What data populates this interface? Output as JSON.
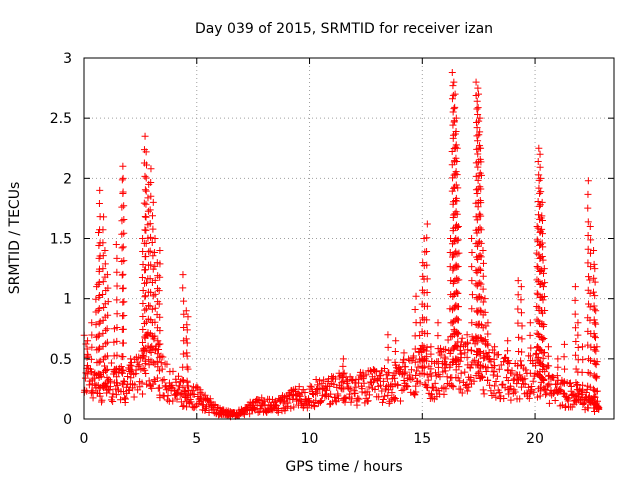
{
  "chart_data": {
    "type": "scatter",
    "title": "Day 039 of 2015, SRMTID for receiver izan",
    "xlabel": "GPS time / hours",
    "ylabel": "SRMTID / TECUs",
    "xlim": [
      0,
      23.5
    ],
    "ylim": [
      0,
      3
    ],
    "xticks": [
      {
        "value": 0,
        "label": "0"
      },
      {
        "value": 5,
        "label": "5"
      },
      {
        "value": 10,
        "label": "10"
      },
      {
        "value": 15,
        "label": "15"
      },
      {
        "value": 20,
        "label": "20"
      }
    ],
    "yticks": [
      {
        "value": 0,
        "label": "0"
      },
      {
        "value": 0.5,
        "label": "0.5"
      },
      {
        "value": 1,
        "label": "1"
      },
      {
        "value": 1.5,
        "label": "1.5"
      },
      {
        "value": 2,
        "label": "2"
      },
      {
        "value": 2.5,
        "label": "2.5"
      },
      {
        "value": 3,
        "label": "3"
      }
    ],
    "grid": "dotted",
    "marker": "plus",
    "series": [
      {
        "name": "SRMTID",
        "color": "#ff0000",
        "baseline": [
          [
            0.0,
            0.45
          ],
          [
            0.3,
            0.3
          ],
          [
            0.6,
            0.25
          ],
          [
            1.0,
            0.3
          ],
          [
            1.5,
            0.3
          ],
          [
            2.0,
            0.28
          ],
          [
            2.5,
            0.38
          ],
          [
            2.8,
            0.5
          ],
          [
            3.2,
            0.45
          ],
          [
            3.6,
            0.32
          ],
          [
            4.0,
            0.25
          ],
          [
            4.5,
            0.2
          ],
          [
            5.0,
            0.18
          ],
          [
            5.5,
            0.12
          ],
          [
            6.0,
            0.06
          ],
          [
            6.5,
            0.04
          ],
          [
            7.0,
            0.06
          ],
          [
            7.5,
            0.1
          ],
          [
            8.0,
            0.12
          ],
          [
            8.5,
            0.1
          ],
          [
            9.0,
            0.14
          ],
          [
            9.5,
            0.18
          ],
          [
            10.0,
            0.2
          ],
          [
            10.5,
            0.22
          ],
          [
            11.0,
            0.24
          ],
          [
            11.5,
            0.25
          ],
          [
            12.0,
            0.25
          ],
          [
            12.5,
            0.26
          ],
          [
            13.0,
            0.27
          ],
          [
            13.5,
            0.28
          ],
          [
            14.0,
            0.3
          ],
          [
            14.5,
            0.35
          ],
          [
            15.0,
            0.38
          ],
          [
            15.5,
            0.35
          ],
          [
            16.0,
            0.4
          ],
          [
            16.5,
            0.5
          ],
          [
            17.0,
            0.45
          ],
          [
            17.5,
            0.45
          ],
          [
            18.0,
            0.42
          ],
          [
            18.5,
            0.35
          ],
          [
            19.0,
            0.3
          ],
          [
            19.5,
            0.35
          ],
          [
            20.0,
            0.4
          ],
          [
            20.5,
            0.3
          ],
          [
            21.0,
            0.22
          ],
          [
            21.5,
            0.2
          ],
          [
            22.0,
            0.18
          ],
          [
            22.5,
            0.15
          ],
          [
            22.8,
            0.1
          ]
        ],
        "spikes": [
          [
            0.15,
            0.65
          ],
          [
            0.35,
            0.8
          ],
          [
            0.55,
            1.1
          ],
          [
            0.65,
            1.55
          ],
          [
            0.7,
            1.9
          ],
          [
            0.85,
            1.68
          ],
          [
            0.95,
            1.4
          ],
          [
            1.05,
            1.2
          ],
          [
            1.35,
            0.75
          ],
          [
            1.45,
            1.45
          ],
          [
            1.7,
            2.1
          ],
          [
            1.75,
            2.0
          ],
          [
            2.05,
            0.5
          ],
          [
            2.6,
            1.5
          ],
          [
            2.7,
            2.35
          ],
          [
            2.75,
            2.22
          ],
          [
            2.85,
            1.95
          ],
          [
            2.95,
            2.08
          ],
          [
            3.05,
            1.8
          ],
          [
            3.15,
            1.5
          ],
          [
            3.25,
            1.3
          ],
          [
            3.35,
            1.4
          ],
          [
            4.4,
            1.2
          ],
          [
            4.55,
            0.9
          ],
          [
            4.6,
            0.85
          ],
          [
            11.5,
            0.5
          ],
          [
            13.5,
            0.7
          ],
          [
            13.8,
            0.65
          ],
          [
            14.2,
            0.55
          ],
          [
            14.7,
            1.02
          ],
          [
            14.9,
            0.8
          ],
          [
            15.0,
            1.3
          ],
          [
            15.1,
            1.5
          ],
          [
            15.2,
            1.62
          ],
          [
            15.4,
            0.6
          ],
          [
            15.7,
            0.8
          ],
          [
            16.0,
            0.5
          ],
          [
            16.25,
            1.5
          ],
          [
            16.35,
            2.88
          ],
          [
            16.4,
            2.8
          ],
          [
            16.45,
            2.7
          ],
          [
            16.5,
            2.5
          ],
          [
            16.55,
            2.25
          ],
          [
            16.6,
            1.6
          ],
          [
            16.7,
            0.6
          ],
          [
            17.0,
            0.7
          ],
          [
            17.2,
            1.5
          ],
          [
            17.4,
            2.8
          ],
          [
            17.45,
            2.75
          ],
          [
            17.5,
            2.7
          ],
          [
            17.55,
            2.5
          ],
          [
            17.6,
            2.25
          ],
          [
            17.7,
            1.4
          ],
          [
            17.8,
            1.0
          ],
          [
            17.9,
            0.8
          ],
          [
            18.2,
            0.6
          ],
          [
            18.8,
            0.65
          ],
          [
            19.25,
            1.15
          ],
          [
            19.4,
            1.1
          ],
          [
            19.8,
            0.8
          ],
          [
            20.1,
            1.6
          ],
          [
            20.15,
            2.25
          ],
          [
            20.2,
            2.2
          ],
          [
            20.25,
            2.0
          ],
          [
            20.3,
            1.8
          ],
          [
            20.35,
            1.65
          ],
          [
            20.4,
            1.25
          ],
          [
            20.6,
            0.6
          ],
          [
            21.0,
            0.5
          ],
          [
            21.3,
            0.62
          ],
          [
            21.8,
            1.1
          ],
          [
            21.9,
            0.8
          ],
          [
            22.1,
            0.6
          ],
          [
            22.35,
            1.98
          ],
          [
            22.45,
            1.6
          ],
          [
            22.6,
            1.4
          ],
          [
            22.65,
            1.25
          ],
          [
            22.7,
            0.9
          ],
          [
            22.75,
            0.6
          ],
          [
            22.8,
            0.08
          ]
        ]
      }
    ]
  }
}
